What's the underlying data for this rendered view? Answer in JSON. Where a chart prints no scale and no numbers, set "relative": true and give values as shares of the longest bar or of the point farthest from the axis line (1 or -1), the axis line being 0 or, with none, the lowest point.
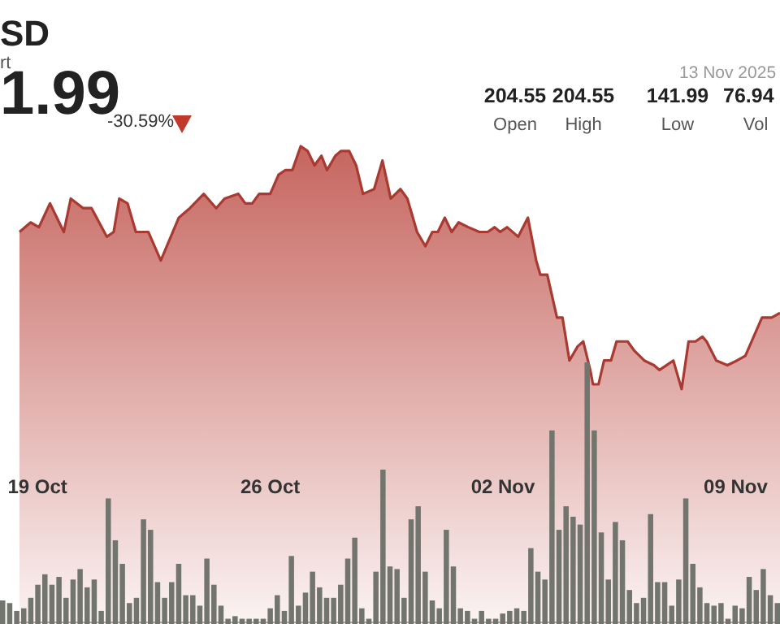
{
  "chart_data": [
    {
      "type": "area",
      "title": "SD",
      "subtitle": "rt",
      "color": "#a83a32",
      "relative": true,
      "annotations": [
        "1.99",
        "-30.59%",
        "13 Nov 2025",
        "204.55",
        "Open",
        "204.55",
        "High",
        "141.99",
        "Low",
        "76.94",
        "Vol"
      ],
      "xticks": [
        {
          "value": "2025-10-19",
          "label": "19 Oct"
        },
        {
          "value": "2025-10-26",
          "label": "26 Oct"
        },
        {
          "value": "2025-11-02",
          "label": "02 Nov"
        },
        {
          "value": "2025-11-09",
          "label": "09 Nov"
        }
      ],
      "x": [
        "2025-10-18T11:00",
        "2025-10-18T19:00",
        "2025-10-19T01:00",
        "2025-10-19T09:00",
        "2025-10-19T19:00",
        "2025-10-20T00:00",
        "2025-10-20T09:00",
        "2025-10-20T15:00",
        "2025-10-21T02:00",
        "2025-10-21T07:00",
        "2025-10-21T11:00",
        "2025-10-21T17:00",
        "2025-10-21T23:00",
        "2025-10-22T08:00",
        "2025-10-22T17:00",
        "2025-10-23T06:00",
        "2025-10-23T14:00",
        "2025-10-24T00:00",
        "2025-10-24T09:00",
        "2025-10-24T15:00",
        "2025-10-25T01:00",
        "2025-10-25T06:00",
        "2025-10-25T11:00",
        "2025-10-25T16:00",
        "2025-10-26T00:00",
        "2025-10-26T06:00",
        "2025-10-26T11:00",
        "2025-10-26T16:00",
        "2025-10-26T22:00",
        "2025-10-27T03:00",
        "2025-10-27T08:00",
        "2025-10-27T13:00",
        "2025-10-27T17:00",
        "2025-10-27T23:00",
        "2025-10-28T03:00",
        "2025-10-28T09:00",
        "2025-10-28T14:00",
        "2025-10-28T19:00",
        "2025-10-29T03:00",
        "2025-10-29T09:00",
        "2025-10-29T15:00",
        "2025-10-29T22:00",
        "2025-10-30T03:00",
        "2025-10-30T10:00",
        "2025-10-30T16:00",
        "2025-10-30T21:00",
        "2025-10-31T01:00",
        "2025-10-31T06:00",
        "2025-10-31T11:00",
        "2025-10-31T16:00",
        "2025-10-31T23:00",
        "2025-11-01T07:00",
        "2025-11-01T13:00",
        "2025-11-01T18:00",
        "2025-11-01T22:00",
        "2025-11-02T03:00",
        "2025-11-02T11:00",
        "2025-11-02T18:00",
        "2025-11-03T00:00",
        "2025-11-03T03:00",
        "2025-11-03T08:00",
        "2025-11-03T15:00",
        "2025-11-03T19:00",
        "2025-11-04T00:00",
        "2025-11-04T06:00",
        "2025-11-04T10:00",
        "2025-11-04T15:00",
        "2025-11-04T17:00",
        "2025-11-04T21:00",
        "2025-11-05T01:00",
        "2025-11-05T06:00",
        "2025-11-05T10:00",
        "2025-11-05T18:00",
        "2025-11-05T23:00",
        "2025-11-06T06:00",
        "2025-11-06T13:00",
        "2025-11-06T17:00",
        "2025-11-06T22:00",
        "2025-11-07T03:00",
        "2025-11-07T09:00",
        "2025-11-07T14:00",
        "2025-11-07T19:00",
        "2025-11-08T00:00",
        "2025-11-08T03:00",
        "2025-11-08T10:00",
        "2025-11-08T18:00",
        "2025-11-09T01:00",
        "2025-11-09T07:00",
        "2025-11-09T13:00",
        "2025-11-09T19:00",
        "2025-11-10T02:00",
        "2025-11-10T08:00"
      ],
      "xlim": [
        "2025-10-18T11:00",
        "2025-11-10T08:00"
      ],
      "values": [
        0.82,
        0.84,
        0.83,
        0.88,
        0.82,
        0.89,
        0.87,
        0.87,
        0.81,
        0.82,
        0.89,
        0.88,
        0.82,
        0.82,
        0.76,
        0.85,
        0.87,
        0.9,
        0.87,
        0.89,
        0.9,
        0.88,
        0.88,
        0.9,
        0.9,
        0.94,
        0.95,
        0.95,
        1.0,
        0.99,
        0.96,
        0.98,
        0.95,
        0.98,
        0.99,
        0.99,
        0.96,
        0.9,
        0.91,
        0.97,
        0.89,
        0.91,
        0.89,
        0.82,
        0.79,
        0.82,
        0.82,
        0.85,
        0.82,
        0.84,
        0.83,
        0.82,
        0.82,
        0.83,
        0.82,
        0.83,
        0.81,
        0.85,
        0.76,
        0.73,
        0.73,
        0.64,
        0.64,
        0.55,
        0.58,
        0.59,
        0.53,
        0.5,
        0.5,
        0.55,
        0.55,
        0.59,
        0.59,
        0.57,
        0.55,
        0.54,
        0.53,
        0.54,
        0.55,
        0.49,
        0.59,
        0.59,
        0.6,
        0.59,
        0.55,
        0.54,
        0.55,
        0.56,
        0.6,
        0.64,
        0.64,
        0.65
      ]
    },
    {
      "type": "bar",
      "color": "#72756d",
      "relative": true,
      "tick_labels": false,
      "categories": [
        null,
        null,
        null,
        null,
        null,
        null,
        null,
        null,
        null,
        null,
        null,
        null,
        null,
        null,
        null,
        null,
        null,
        null,
        null,
        null,
        null,
        null,
        null,
        null,
        null,
        null,
        null,
        null,
        null,
        null,
        null,
        null,
        null,
        null,
        null,
        null,
        null,
        null,
        null,
        null,
        null,
        null,
        null,
        null,
        null,
        null,
        null,
        null,
        null,
        null,
        null,
        null,
        null,
        null,
        null,
        null,
        null,
        null,
        null,
        null,
        null,
        null,
        null,
        null,
        null,
        null,
        null,
        null,
        null,
        null,
        null,
        null,
        null,
        null,
        null,
        null,
        null,
        null,
        null,
        null,
        null,
        null,
        null,
        null,
        null,
        null,
        null,
        null,
        null,
        null,
        null,
        null,
        null,
        null,
        null,
        null,
        null,
        null,
        null,
        null,
        null,
        null,
        null,
        null,
        null,
        null,
        null,
        null,
        null,
        null,
        null
      ],
      "values": [
        0.09,
        0.08,
        0.05,
        0.06,
        0.1,
        0.15,
        0.19,
        0.15,
        0.18,
        0.1,
        0.17,
        0.21,
        0.14,
        0.17,
        0.05,
        0.48,
        0.32,
        0.23,
        0.08,
        0.1,
        0.4,
        0.36,
        0.16,
        0.1,
        0.16,
        0.23,
        0.11,
        0.11,
        0.07,
        0.25,
        0.15,
        0.07,
        0.02,
        0.03,
        0.02,
        0.02,
        0.02,
        0.02,
        0.06,
        0.11,
        0.05,
        0.26,
        0.07,
        0.12,
        0.2,
        0.14,
        0.1,
        0.1,
        0.15,
        0.25,
        0.33,
        0.06,
        0.02,
        0.2,
        0.59,
        0.22,
        0.21,
        0.1,
        0.4,
        0.45,
        0.2,
        0.09,
        0.06,
        0.36,
        0.22,
        0.06,
        0.05,
        0.02,
        0.05,
        0.02,
        0.02,
        0.04,
        0.05,
        0.06,
        0.05,
        0.29,
        0.2,
        0.17,
        0.74,
        0.36,
        0.45,
        0.41,
        0.38,
        1.0,
        0.74,
        0.35,
        0.17,
        0.39,
        0.32,
        0.13,
        0.08,
        0.1,
        0.42,
        0.16,
        0.16,
        0.07,
        0.17,
        0.48,
        0.23,
        0.14,
        0.08,
        0.07,
        0.08,
        0.02,
        0.07,
        0.06,
        0.18,
        0.13,
        0.21,
        0.11,
        0.08
      ]
    }
  ]
}
